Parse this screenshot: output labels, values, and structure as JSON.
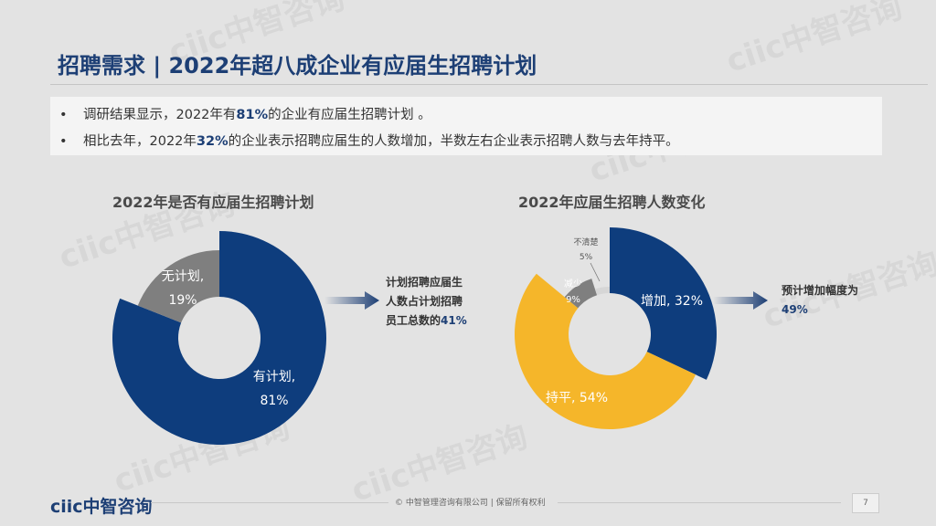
{
  "header": {
    "title": "招聘需求 | 2022年超八成企业有应届生招聘计划"
  },
  "summary": {
    "bullet1_pre": "调研结果显示，2022年有",
    "bullet1_hl": "81%",
    "bullet1_post": "的企业有应届生招聘计划 。",
    "bullet2_pre": "相比去年，2022年",
    "bullet2_hl": "32%",
    "bullet2_post": "的企业表示招聘应届生的人数增加，半数左右企业表示招聘人数与去年持平。"
  },
  "watermark": "ciic中智咨询",
  "chart_data": [
    {
      "type": "pie",
      "variant": "donut",
      "title": "2022年是否有应届生招聘计划",
      "slices": [
        {
          "name": "有计划,",
          "value": 81,
          "label": "81%",
          "color": "#0e3d7d"
        },
        {
          "name": "无计划,",
          "value": 19,
          "label": "19%",
          "color": "#7f7f7f"
        }
      ]
    },
    {
      "type": "pie",
      "variant": "donut",
      "title": "2022年应届生招聘人数变化",
      "slices": [
        {
          "name": "增加,",
          "value": 32,
          "label": "32%",
          "color": "#0e3d7d"
        },
        {
          "name": "持平,",
          "value": 54,
          "label": "54%",
          "color": "#f5b62a"
        },
        {
          "name": "减少",
          "value": 9,
          "label": "9%",
          "color": "#7f7f7f"
        },
        {
          "name": "不清楚",
          "value": 5,
          "label": "5%",
          "color": "#d6d6d6"
        }
      ]
    }
  ],
  "notes": {
    "left_line1": "计划招聘应届生",
    "left_line2": "人数占计划招聘",
    "left_line3_pre": "员工总数的",
    "left_line3_hl": "41%",
    "right_line1": "预计增加幅度为",
    "right_line2": "49%"
  },
  "footer": {
    "logo": "ciic中智咨询",
    "copyright": "© 中智管理咨询有限公司 | 保留所有权利",
    "page": "7"
  }
}
